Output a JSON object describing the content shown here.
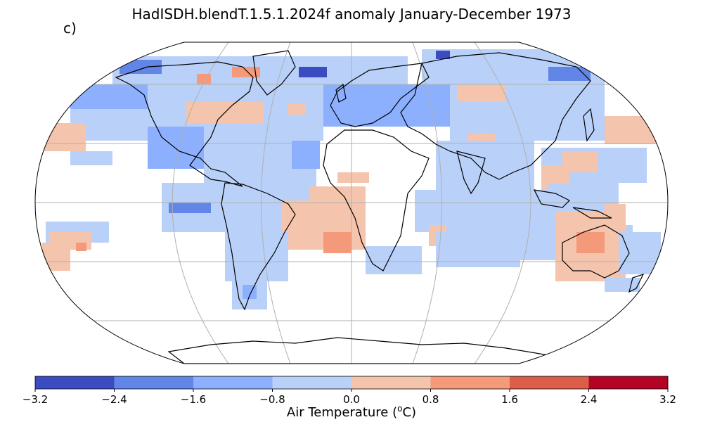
{
  "title": "HadISDH.blendT.1.5.1.2024f anomaly January-December 1973",
  "panel_label": "c)",
  "colorbar": {
    "label_main": "Air Temperature (",
    "label_sup": "o",
    "label_end": "C)",
    "ticks": [
      "−3.2",
      "−2.4",
      "−1.6",
      "−0.8",
      "0.0",
      "0.8",
      "1.6",
      "2.4",
      "3.2"
    ],
    "colors": [
      "#3b4cc0",
      "#6285e8",
      "#8db0fe",
      "#b9d0f9",
      "#f5c4ad",
      "#f49a7b",
      "#dc5d4a",
      "#b40426"
    ]
  },
  "map": {
    "projection": "Robinson",
    "variable": "Air Temperature anomaly",
    "period": "January-December 1973"
  }
}
